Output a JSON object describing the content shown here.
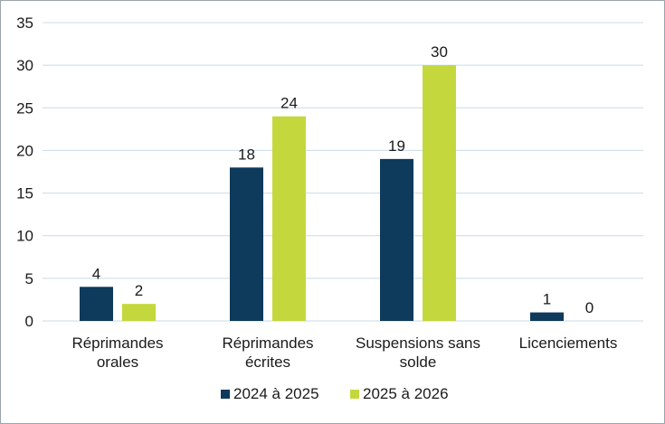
{
  "chart_data": {
    "type": "bar",
    "categories": [
      [
        "Réprimandes",
        "orales"
      ],
      [
        "Réprimandes",
        "écrites"
      ],
      [
        "Suspensions sans",
        "solde"
      ],
      [
        "Licenciements"
      ]
    ],
    "series": [
      {
        "name": "2024 à 2025",
        "values": [
          4,
          18,
          19,
          1
        ],
        "color": "#0e3a5c"
      },
      {
        "name": "2025 à 2026",
        "values": [
          2,
          24,
          30,
          0
        ],
        "color": "#c4d83e"
      }
    ],
    "ylim": [
      0,
      35
    ],
    "yticks": [
      0,
      5,
      10,
      15,
      20,
      25,
      30,
      35
    ],
    "grid": true,
    "gridColor": "#c9dbe6",
    "legend": "bottom"
  }
}
